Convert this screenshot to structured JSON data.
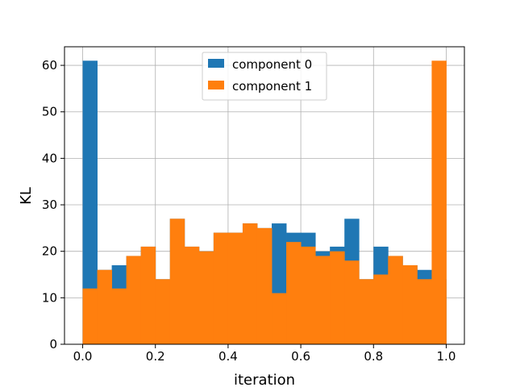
{
  "chart_data": {
    "type": "bar",
    "subtype": "overlaid-histogram",
    "title": "",
    "xlabel": "iteration",
    "ylabel": "KL",
    "xlim": [
      -0.05,
      1.05
    ],
    "ylim": [
      0,
      64
    ],
    "xticks": [
      "0.0",
      "0.2",
      "0.4",
      "0.6",
      "0.8",
      "1.0"
    ],
    "yticks": [
      "0",
      "10",
      "20",
      "30",
      "40",
      "50",
      "60"
    ],
    "grid": true,
    "legend_position": "top-center",
    "bin_edges": [
      0.0,
      0.04,
      0.08,
      0.12,
      0.16,
      0.2,
      0.24,
      0.28,
      0.32,
      0.36,
      0.4,
      0.44,
      0.48,
      0.52,
      0.56,
      0.6,
      0.64,
      0.68,
      0.72,
      0.76,
      0.8,
      0.84,
      0.88,
      0.92,
      0.96,
      1.0
    ],
    "series": [
      {
        "name": "component 0",
        "color": "#1f77b4",
        "values": [
          61,
          16,
          17,
          19,
          21,
          14,
          27,
          21,
          20,
          24,
          24,
          26,
          25,
          26,
          24,
          24,
          20,
          21,
          27,
          14,
          21,
          19,
          17,
          16,
          14
        ]
      },
      {
        "name": "component 1",
        "color": "#ff7f0e",
        "values": [
          12,
          16,
          12,
          19,
          21,
          14,
          27,
          21,
          20,
          24,
          24,
          26,
          25,
          11,
          22,
          21,
          19,
          20,
          18,
          14,
          15,
          19,
          17,
          14,
          61
        ]
      }
    ]
  }
}
